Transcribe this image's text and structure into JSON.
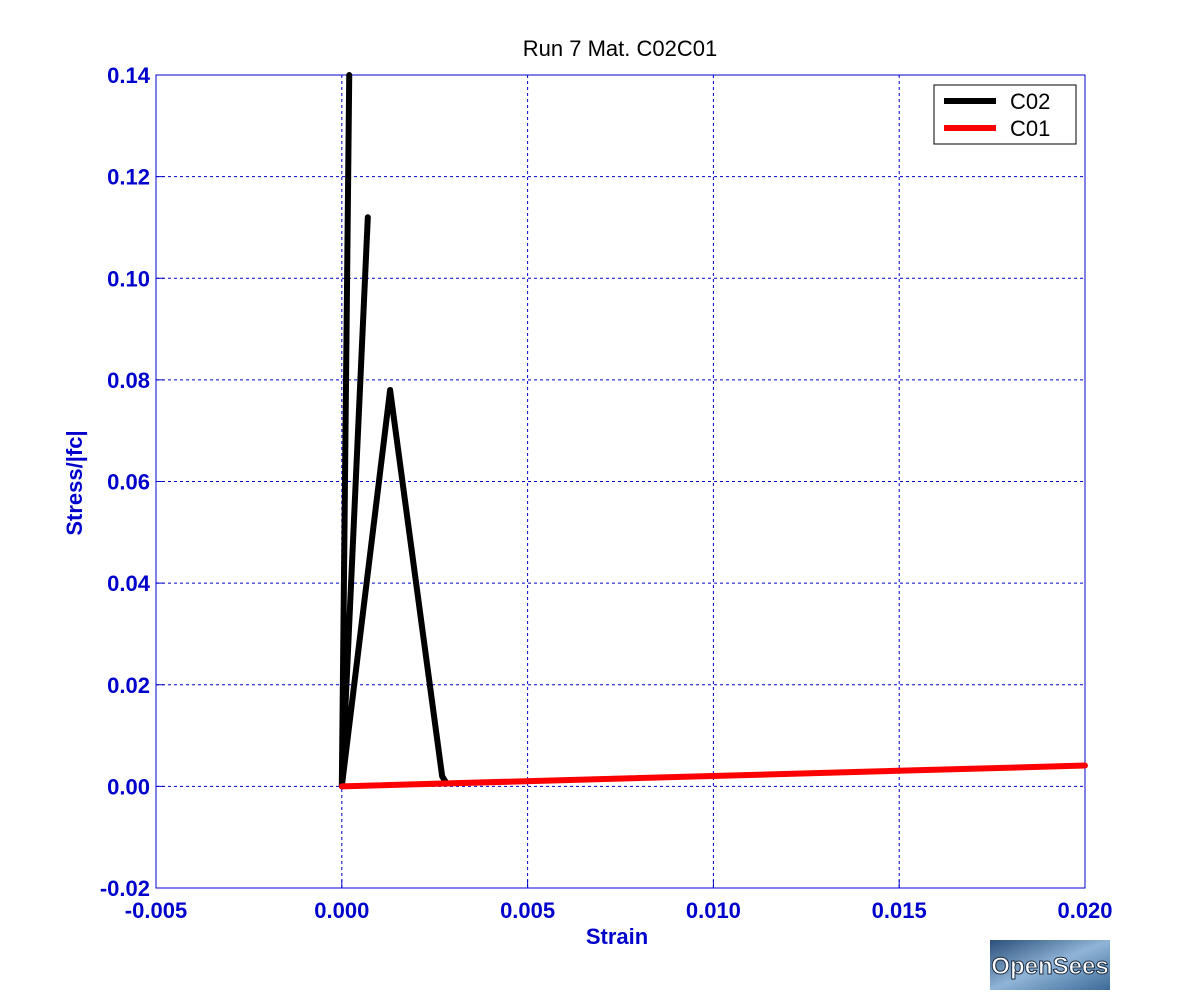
{
  "chart_data": {
    "type": "line",
    "title": "Run 7    Mat. C02C01",
    "xlabel": "Strain",
    "ylabel": "Stress/|fc|",
    "xlim": [
      -0.005,
      0.02
    ],
    "ylim": [
      -0.02,
      0.14
    ],
    "xticks": [
      -0.005,
      0.0,
      0.005,
      0.01,
      0.015,
      0.02
    ],
    "xtick_labels": [
      "-0.005",
      "0.000",
      "0.005",
      "0.010",
      "0.015",
      "0.020"
    ],
    "yticks": [
      -0.02,
      0.0,
      0.02,
      0.04,
      0.06,
      0.08,
      0.1,
      0.12,
      0.14
    ],
    "ytick_labels": [
      "-0.02",
      "0.00",
      "0.02",
      "0.04",
      "0.06",
      "0.08",
      "0.10",
      "0.12",
      "0.14"
    ],
    "grid": true,
    "legend_position": "top-right",
    "series": [
      {
        "name": "C02",
        "color": "#000000",
        "x": [
          0.0,
          0.0002,
          0.0,
          0.0007,
          0.0,
          0.0013,
          0.0027,
          0.0028
        ],
        "y": [
          0.0,
          0.14,
          0.0,
          0.112,
          0.0,
          0.078,
          0.002,
          0.0008
        ]
      },
      {
        "name": "C01",
        "color": "#ff0000",
        "x": [
          0.0,
          0.02
        ],
        "y": [
          0.0,
          0.0041
        ]
      }
    ]
  },
  "logo": {
    "text": "OpenSees"
  }
}
